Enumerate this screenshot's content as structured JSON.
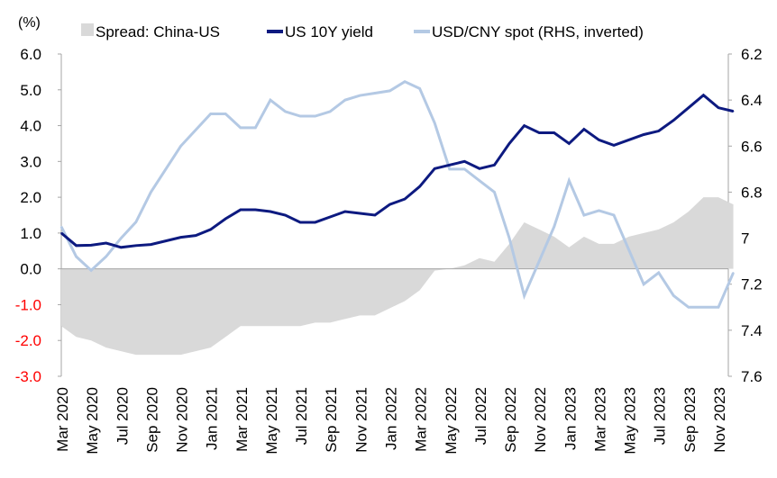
{
  "chart_data": {
    "type": "line",
    "left_unit": "(%)",
    "legend": {
      "placement": "top",
      "items": [
        {
          "label": "Spread: China-US",
          "color": "#d9d9d9",
          "kind": "area"
        },
        {
          "label": "US 10Y yield",
          "color": "#0d1a80",
          "kind": "line"
        },
        {
          "label": "USD/CNY spot (RHS, inverted)",
          "color": "#b4c9e4",
          "kind": "line"
        }
      ]
    },
    "ylim_left": [
      -3,
      6
    ],
    "left_ticks": [
      "6.0",
      "5.0",
      "4.0",
      "3.0",
      "2.0",
      "1.0",
      "0.0",
      "-1.0",
      "-2.0",
      "-3.0"
    ],
    "left_tick_values": [
      6,
      5,
      4,
      3,
      2,
      1,
      0,
      -1,
      -2,
      -3
    ],
    "negative_tick_color": "#ff0000",
    "ylim_right": [
      6.2,
      7.6
    ],
    "right_inverted": true,
    "right_ticks": [
      "6.2",
      "6.4",
      "6.6",
      "6.8",
      "7",
      "7.2",
      "7.4",
      "7.6"
    ],
    "right_tick_values": [
      6.2,
      6.4,
      6.6,
      6.8,
      7.0,
      7.2,
      7.4,
      7.6
    ],
    "x_ticks": [
      "Mar 2020",
      "May 2020",
      "Jul 2020",
      "Sep 2020",
      "Nov 2020",
      "Jan 2021",
      "Mar 2021",
      "May 2021",
      "Jul 2021",
      "Sep 2021",
      "Nov 2021",
      "Jan 2022",
      "Mar 2022",
      "May 2022",
      "Jul 2022",
      "Sep 2022",
      "Nov 2022",
      "Jan 2023",
      "Mar 2023",
      "May 2023",
      "Jul 2023",
      "Sep 2023",
      "Nov 2023"
    ],
    "x_start": "Mar 2020",
    "x_frequency": "monthly",
    "series": [
      {
        "name": "Spread: China-US",
        "axis": "left",
        "values": [
          -1.6,
          -1.9,
          -2.0,
          -2.2,
          -2.3,
          -2.4,
          -2.4,
          -2.4,
          -2.4,
          -2.3,
          -2.2,
          -1.9,
          -1.6,
          -1.6,
          -1.6,
          -1.6,
          -1.6,
          -1.5,
          -1.5,
          -1.4,
          -1.3,
          -1.3,
          -1.1,
          -0.9,
          -0.6,
          -0.05,
          0.0,
          0.1,
          0.3,
          0.2,
          0.7,
          1.3,
          1.1,
          0.9,
          0.6,
          0.9,
          0.7,
          0.7,
          0.9,
          1.0,
          1.1,
          1.3,
          1.6,
          2.0,
          2.0,
          1.8
        ]
      },
      {
        "name": "US 10Y yield",
        "axis": "left",
        "values": [
          1.0,
          0.65,
          0.66,
          0.72,
          0.6,
          0.65,
          0.68,
          0.78,
          0.88,
          0.93,
          1.1,
          1.4,
          1.65,
          1.65,
          1.6,
          1.5,
          1.3,
          1.3,
          1.45,
          1.6,
          1.55,
          1.5,
          1.8,
          1.95,
          2.3,
          2.8,
          2.9,
          3.0,
          2.8,
          2.9,
          3.5,
          4.0,
          3.8,
          3.8,
          3.5,
          3.9,
          3.6,
          3.45,
          3.6,
          3.75,
          3.85,
          4.15,
          4.5,
          4.85,
          4.5,
          4.4
        ]
      },
      {
        "name": "USD/CNY spot (RHS, inverted)",
        "axis": "right",
        "values": [
          6.95,
          7.08,
          7.14,
          7.08,
          7.0,
          6.93,
          6.8,
          6.7,
          6.6,
          6.53,
          6.46,
          6.46,
          6.52,
          6.52,
          6.4,
          6.45,
          6.47,
          6.47,
          6.45,
          6.4,
          6.38,
          6.37,
          6.36,
          6.32,
          6.35,
          6.5,
          6.7,
          6.7,
          6.75,
          6.8,
          7.0,
          7.25,
          7.1,
          6.95,
          6.75,
          6.9,
          6.88,
          6.9,
          7.05,
          7.2,
          7.15,
          7.25,
          7.3,
          7.3,
          7.3,
          7.15
        ]
      }
    ]
  }
}
